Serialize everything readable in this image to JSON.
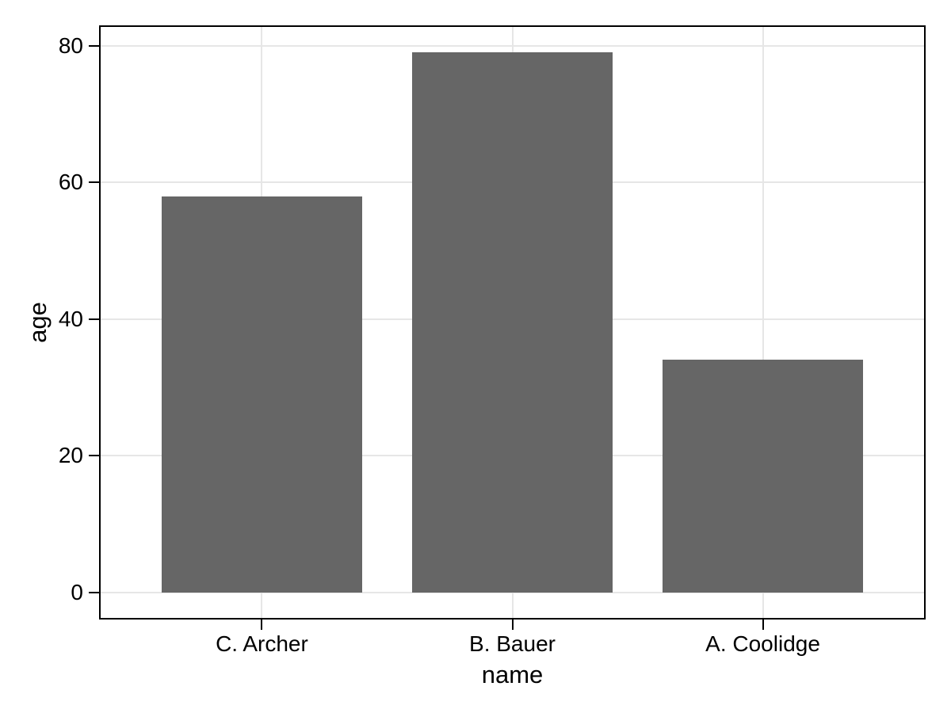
{
  "chart_data": {
    "type": "bar",
    "categories": [
      "C. Archer",
      "B. Bauer",
      "A. Coolidge"
    ],
    "values": [
      58,
      79,
      34
    ],
    "title": "",
    "xlabel": "name",
    "ylabel": "age",
    "ylim": [
      -4,
      83
    ],
    "yticks": [
      0,
      20,
      40,
      60,
      80
    ],
    "ytick_labels": [
      "0",
      "20",
      "40",
      "60",
      "80"
    ],
    "grid": true,
    "legend": "none",
    "bar_color": "#666666",
    "grid_color": "#e6e6e6",
    "axis_color": "#000000",
    "text_color": "#000000",
    "background": "#ffffff"
  }
}
